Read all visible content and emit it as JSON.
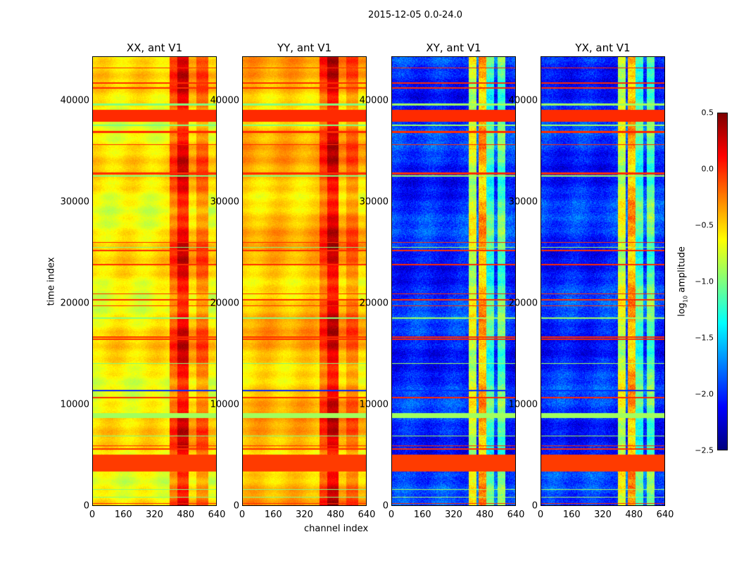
{
  "chart_data": {
    "type": "heatmap",
    "suptitle": "2015-12-05 0.0-24.0",
    "xlabel": "channel index",
    "ylabel": "time index",
    "xlim": [
      0,
      640
    ],
    "ylim": [
      0,
      44400
    ],
    "xticks": [
      "0",
      "160",
      "320",
      "480",
      "640"
    ],
    "yticks": [
      "0",
      "10000",
      "20000",
      "30000",
      "40000"
    ],
    "colorbar": {
      "label": "log10 amplitude",
      "label_base": "log",
      "label_sub": "10",
      "label_rest": " amplitude",
      "range": [
        -2.5,
        0.5
      ],
      "ticks": [
        "0.5",
        "0.0",
        "−0.5",
        "−1.0",
        "−1.5",
        "−2.0",
        "−2.5"
      ],
      "tick_values": [
        0.5,
        0.0,
        -0.5,
        -1.0,
        -1.5,
        -2.0,
        -2.5
      ],
      "colormap": "jet"
    },
    "panels": [
      {
        "title": "XX, ant V1",
        "background": -0.6,
        "channel_bands": [
          [
            400,
            440,
            -0.15
          ],
          [
            440,
            500,
            0.15
          ],
          [
            500,
            540,
            -0.45
          ],
          [
            540,
            600,
            -0.2
          ],
          [
            600,
            640,
            -0.6
          ]
        ]
      },
      {
        "title": "YY, ant V1",
        "background": -0.45,
        "channel_bands": [
          [
            400,
            440,
            -0.1
          ],
          [
            440,
            500,
            0.2
          ],
          [
            500,
            540,
            -0.4
          ],
          [
            540,
            600,
            -0.2
          ],
          [
            600,
            640,
            -0.5
          ]
        ]
      },
      {
        "title": "XY, ant V1",
        "background": -2.0,
        "channel_bands": [
          [
            400,
            440,
            -0.75
          ],
          [
            440,
            450,
            -1.9
          ],
          [
            450,
            490,
            -0.4
          ],
          [
            490,
            530,
            -1.2
          ],
          [
            530,
            550,
            -1.9
          ],
          [
            550,
            590,
            -1.1
          ]
        ]
      },
      {
        "title": "YX, ant V1",
        "background": -2.0,
        "channel_bands": [
          [
            400,
            440,
            -0.75
          ],
          [
            440,
            450,
            -1.9
          ],
          [
            450,
            490,
            -0.4
          ],
          [
            490,
            530,
            -1.2
          ],
          [
            530,
            550,
            -1.9
          ],
          [
            550,
            590,
            -1.1
          ]
        ]
      }
    ],
    "flagged_time_ranges": [
      [
        43300,
        43400,
        0.0
      ],
      [
        41800,
        41900,
        0.0
      ],
      [
        41300,
        41400,
        0.0
      ],
      [
        39600,
        39800,
        -1.0
      ],
      [
        38000,
        39200,
        0.0
      ],
      [
        37600,
        37700,
        -1.0
      ],
      [
        36900,
        37100,
        0.0
      ],
      [
        35700,
        35800,
        0.0
      ],
      [
        32800,
        33000,
        0.0
      ],
      [
        32600,
        32700,
        -1.0
      ],
      [
        26000,
        26100,
        0.0
      ],
      [
        25500,
        25600,
        -1.0
      ],
      [
        25200,
        25300,
        0.0
      ],
      [
        23800,
        23900,
        0.0
      ],
      [
        20900,
        21000,
        0.0
      ],
      [
        20300,
        20400,
        0.0
      ],
      [
        19700,
        19800,
        0.0
      ],
      [
        18500,
        18600,
        -1.0
      ],
      [
        16600,
        16700,
        0.0
      ],
      [
        16400,
        16500,
        0.0
      ],
      [
        14000,
        14100,
        -1.0
      ],
      [
        11300,
        11400,
        -2.0
      ],
      [
        10600,
        10700,
        0.0
      ],
      [
        8600,
        9100,
        -0.9
      ],
      [
        6800,
        6900,
        -1.0
      ],
      [
        5800,
        5900,
        0.0
      ],
      [
        5500,
        5600,
        0.0
      ],
      [
        3300,
        5000,
        -0.05
      ],
      [
        1500,
        1600,
        -1.0
      ],
      [
        700,
        800,
        -1.0
      ],
      [
        100,
        200,
        0.0
      ]
    ]
  }
}
